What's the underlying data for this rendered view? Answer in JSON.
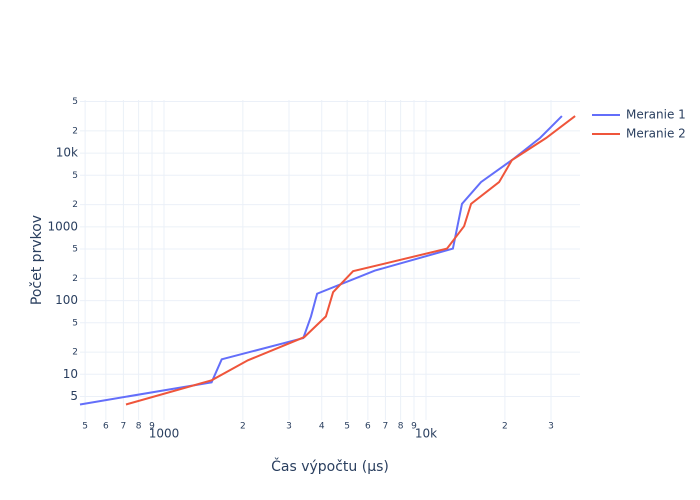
{
  "chart_data": {
    "type": "line",
    "x_label": "Čas výpočtu (μs)",
    "y_label": "Počet prvkov",
    "xscale": "log",
    "yscale": "log",
    "grid": true,
    "legend": "top-right",
    "xlim": [
      478,
      38700
    ],
    "ylim": [
      2.4,
      52500
    ],
    "xticks": [
      {
        "value": 500,
        "label": "5"
      },
      {
        "value": 600,
        "label": "6"
      },
      {
        "value": 700,
        "label": "7"
      },
      {
        "value": 800,
        "label": "8"
      },
      {
        "value": 900,
        "label": "9"
      },
      1000,
      {
        "value": 2000,
        "label": "2"
      },
      {
        "value": 3000,
        "label": "3"
      },
      {
        "value": 4000,
        "label": "4"
      },
      {
        "value": 5000,
        "label": "5"
      },
      {
        "value": 6000,
        "label": "6"
      },
      {
        "value": 7000,
        "label": "7"
      },
      {
        "value": 8000,
        "label": "8"
      },
      {
        "value": 9000,
        "label": "9"
      },
      {
        "value": 10000,
        "label": "10k"
      },
      {
        "value": 20000,
        "label": "2"
      },
      {
        "value": 30000,
        "label": "3"
      }
    ],
    "yticks": [
      5,
      10,
      {
        "value": 20,
        "label": "2"
      },
      {
        "value": 50,
        "label": "5"
      },
      100,
      {
        "value": 200,
        "label": "2"
      },
      {
        "value": 500,
        "label": "5"
      },
      1000,
      {
        "value": 2000,
        "label": "2"
      },
      {
        "value": 5000,
        "label": "5"
      },
      {
        "value": 10000,
        "label": "10k"
      },
      {
        "value": 20000,
        "label": "2"
      },
      {
        "value": 50000,
        "label": "5"
      }
    ],
    "series": [
      {
        "name": "Meranie 1",
        "color": "#636efa",
        "x": [
          478,
          1520,
          1660,
          3400,
          3640,
          3840,
          6380,
          12670,
          13720,
          16220,
          21280,
          27230,
          33000
        ],
        "values": [
          3.9,
          7.8,
          16,
          31,
          61,
          124,
          255,
          507,
          2050,
          4040,
          8030,
          16000,
          31800
        ]
      },
      {
        "name": "Meranie 2",
        "color": "#ef553b",
        "x": [
          716,
          1520,
          2090,
          3430,
          4150,
          4420,
          5270,
          12030,
          13970,
          14860,
          19010,
          21280,
          28720,
          37070
        ],
        "values": [
          3.9,
          8.3,
          15.5,
          32,
          61,
          130,
          250,
          507,
          1020,
          2050,
          4040,
          8030,
          16000,
          31800
        ]
      }
    ]
  }
}
